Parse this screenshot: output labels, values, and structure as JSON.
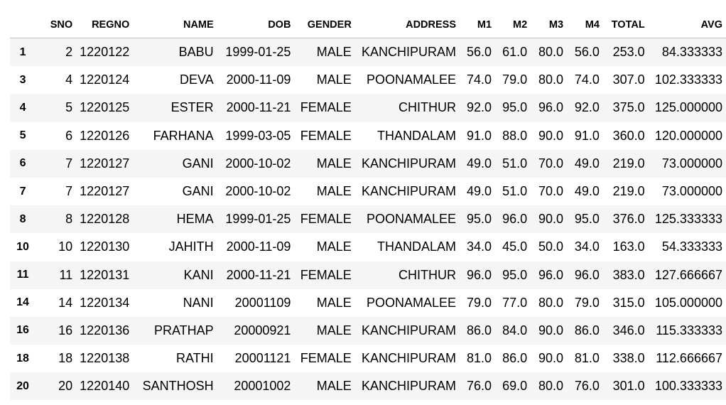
{
  "table": {
    "columns": [
      "",
      "SNO",
      "REGNO",
      "NAME",
      "DOB",
      "GENDER",
      "ADDRESS",
      "M1",
      "M2",
      "M3",
      "M4",
      "TOTAL",
      "AVG"
    ],
    "rows": [
      [
        "1",
        "2",
        "1220122",
        "BABU",
        "1999-01-25",
        "MALE",
        "KANCHIPURAM",
        "56.0",
        "61.0",
        "80.0",
        "56.0",
        "253.0",
        "84.333333"
      ],
      [
        "3",
        "4",
        "1220124",
        "DEVA",
        "2000-11-09",
        "MALE",
        "POONAMALEE",
        "74.0",
        "79.0",
        "80.0",
        "74.0",
        "307.0",
        "102.333333"
      ],
      [
        "4",
        "5",
        "1220125",
        "ESTER",
        "2000-11-21",
        "FEMALE",
        "CHITHUR",
        "92.0",
        "95.0",
        "96.0",
        "92.0",
        "375.0",
        "125.000000"
      ],
      [
        "5",
        "6",
        "1220126",
        "FARHANA",
        "1999-03-05",
        "FEMALE",
        "THANDALAM",
        "91.0",
        "88.0",
        "90.0",
        "91.0",
        "360.0",
        "120.000000"
      ],
      [
        "6",
        "7",
        "1220127",
        "GANI",
        "2000-10-02",
        "MALE",
        "KANCHIPURAM",
        "49.0",
        "51.0",
        "70.0",
        "49.0",
        "219.0",
        "73.000000"
      ],
      [
        "7",
        "7",
        "1220127",
        "GANI",
        "2000-10-02",
        "MALE",
        "KANCHIPURAM",
        "49.0",
        "51.0",
        "70.0",
        "49.0",
        "219.0",
        "73.000000"
      ],
      [
        "8",
        "8",
        "1220128",
        "HEMA",
        "1999-01-25",
        "FEMALE",
        "POONAMALEE",
        "95.0",
        "96.0",
        "90.0",
        "95.0",
        "376.0",
        "125.333333"
      ],
      [
        "10",
        "10",
        "1220130",
        "JAHITH",
        "2000-11-09",
        "MALE",
        "THANDALAM",
        "34.0",
        "45.0",
        "50.0",
        "34.0",
        "163.0",
        "54.333333"
      ],
      [
        "11",
        "11",
        "1220131",
        "KANI",
        "2000-11-21",
        "FEMALE",
        "CHITHUR",
        "96.0",
        "95.0",
        "96.0",
        "96.0",
        "383.0",
        "127.666667"
      ],
      [
        "14",
        "14",
        "1220134",
        "NANI",
        "20001109",
        "MALE",
        "POONAMALEE",
        "79.0",
        "77.0",
        "80.0",
        "79.0",
        "315.0",
        "105.000000"
      ],
      [
        "16",
        "16",
        "1220136",
        "PRATHAP",
        "20000921",
        "MALE",
        "KANCHIPURAM",
        "86.0",
        "84.0",
        "90.0",
        "86.0",
        "346.0",
        "115.333333"
      ],
      [
        "18",
        "18",
        "1220138",
        "RATHI",
        "20001121",
        "FEMALE",
        "KANCHIPURAM",
        "81.0",
        "86.0",
        "90.0",
        "81.0",
        "338.0",
        "112.666667"
      ],
      [
        "20",
        "20",
        "1220140",
        "SANTHOSH",
        "20001002",
        "MALE",
        "KANCHIPURAM",
        "76.0",
        "69.0",
        "80.0",
        "76.0",
        "301.0",
        "100.333333"
      ]
    ]
  }
}
